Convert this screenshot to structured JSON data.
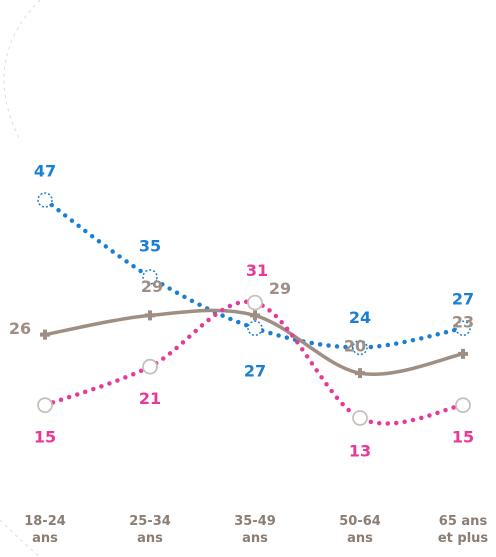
{
  "chart_data": {
    "type": "line",
    "categories": [
      "18-24 ans",
      "25-34 ans",
      "35-49 ans",
      "50-64 ans",
      "65 ans et plus"
    ],
    "series": [
      {
        "name": null,
        "color": "#1a7fd4",
        "style": "dotted",
        "marker": "dotted-circle",
        "values": [
          47,
          35,
          27,
          24,
          27
        ]
      },
      {
        "name": null,
        "color": "#9e8e84",
        "style": "solid",
        "marker": "plus",
        "values": [
          26,
          29,
          29,
          20,
          23
        ]
      },
      {
        "name": null,
        "color": "#e8399a",
        "style": "dotted",
        "marker": "open-circle",
        "values": [
          15,
          21,
          31,
          13,
          15
        ]
      }
    ]
  }
}
